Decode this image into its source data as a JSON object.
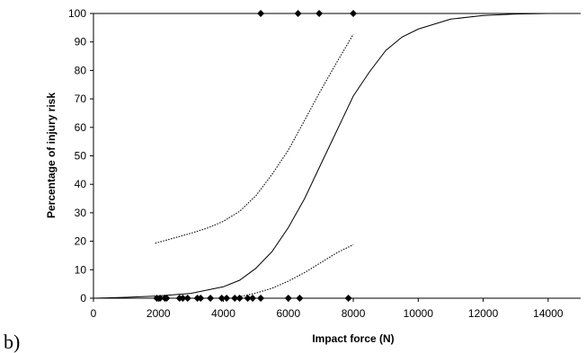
{
  "panel_label": "b)",
  "chart_data": {
    "type": "scatter",
    "title": "",
    "xlabel": "Impact force (N)",
    "ylabel": "Percentage of injury risk",
    "xlim": [
      0,
      15000
    ],
    "ylim": [
      0,
      100
    ],
    "x_ticks": [
      0,
      2000,
      4000,
      6000,
      8000,
      10000,
      12000,
      14000
    ],
    "y_ticks": [
      0,
      10,
      20,
      30,
      40,
      50,
      60,
      70,
      80,
      90,
      100
    ],
    "grid": false,
    "legend": "none",
    "series": [
      {
        "kind": "curve",
        "style": "solid",
        "x": [
          0,
          1000,
          2000,
          3000,
          4000,
          4500,
          5000,
          5500,
          6000,
          6500,
          7000,
          7500,
          8000,
          8500,
          9000,
          9500,
          10000,
          11000,
          12000,
          13000,
          14000,
          15000
        ],
        "y": [
          0,
          0.3,
          0.8,
          1.7,
          4,
          6.3,
          10.5,
          16.4,
          24.8,
          35,
          47,
          59,
          71,
          79.5,
          87,
          91.7,
          94.5,
          98,
          99.3,
          99.8,
          100,
          100
        ]
      },
      {
        "kind": "curve",
        "style": "dotted",
        "x": [
          1900,
          2500,
          3000,
          3500,
          4000,
          4500,
          5000,
          5500,
          6000,
          6500,
          7000,
          7500,
          8000
        ],
        "y": [
          19.3,
          21.2,
          22.8,
          24.6,
          27,
          30.5,
          36,
          43.5,
          52,
          62.5,
          73,
          83,
          92.7
        ]
      },
      {
        "kind": "curve",
        "style": "dotted",
        "x": [
          4300,
          5000,
          5500,
          6000,
          6500,
          7000,
          7500,
          8000
        ],
        "y": [
          0,
          1.8,
          3.5,
          6,
          9,
          12.5,
          16,
          18.8
        ]
      },
      {
        "kind": "points",
        "marker": "diamond",
        "x": [
          1950,
          2050,
          2200,
          2250,
          2650,
          2750,
          2900,
          3200,
          3300,
          3600,
          3950,
          4100,
          4350,
          4500,
          4750,
          4900,
          5150,
          6000,
          6350,
          7850
        ],
        "y": [
          0,
          0,
          0,
          0,
          0,
          0,
          0,
          0,
          0,
          0,
          0,
          0,
          0,
          0,
          0,
          0,
          0,
          0,
          0,
          0
        ]
      },
      {
        "kind": "points",
        "marker": "diamond",
        "x": [
          5150,
          6300,
          6950,
          8000
        ],
        "y": [
          100,
          100,
          100,
          100
        ]
      }
    ]
  }
}
